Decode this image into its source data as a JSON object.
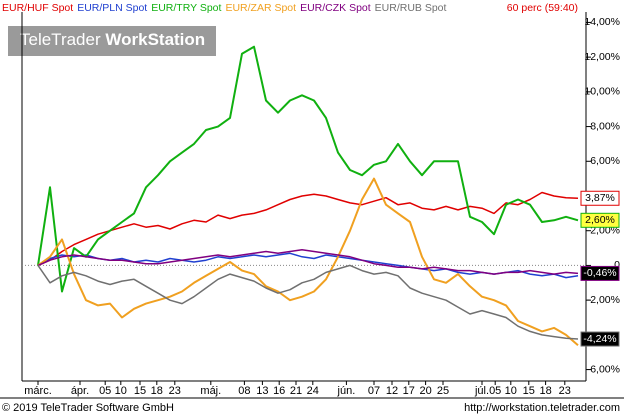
{
  "chart_data": {
    "type": "line",
    "period": "60 perc (59:40)",
    "watermark": {
      "brand": "TeleTrader",
      "product": "WorkStation"
    },
    "xlim": [
      0,
      45
    ],
    "xticks": [
      {
        "value": 0,
        "label": "márc."
      },
      {
        "value": 3.5,
        "label": "ápr."
      },
      {
        "value": 5.6,
        "label": "05"
      },
      {
        "value": 6.9,
        "label": "10"
      },
      {
        "value": 8.5,
        "label": "15"
      },
      {
        "value": 9.9,
        "label": "18"
      },
      {
        "value": 11.4,
        "label": "23"
      },
      {
        "value": 14.4,
        "label": "máj."
      },
      {
        "value": 17.2,
        "label": "08"
      },
      {
        "value": 18.7,
        "label": "13"
      },
      {
        "value": 20.1,
        "label": "16"
      },
      {
        "value": 21.5,
        "label": "21"
      },
      {
        "value": 22.9,
        "label": "24"
      },
      {
        "value": 25.7,
        "label": "jún."
      },
      {
        "value": 28,
        "label": "07"
      },
      {
        "value": 29.5,
        "label": "12"
      },
      {
        "value": 30.9,
        "label": "17"
      },
      {
        "value": 32.3,
        "label": "20"
      },
      {
        "value": 33.75,
        "label": "25"
      },
      {
        "value": 37,
        "label": "júl."
      },
      {
        "value": 38.1,
        "label": "05"
      },
      {
        "value": 39.4,
        "label": "10"
      },
      {
        "value": 40.9,
        "label": "15"
      },
      {
        "value": 42.3,
        "label": "18"
      },
      {
        "value": 43.9,
        "label": "23"
      }
    ],
    "ylim": [
      -6.6,
      14.6
    ],
    "yticks": [
      {
        "value": -6,
        "label": "-6,00%"
      },
      {
        "value": -2,
        "label": "-2,00%"
      },
      0,
      {
        "value": 2,
        "label": "2,00%"
      },
      {
        "value": 6,
        "label": "6,00%"
      },
      {
        "value": 8,
        "label": "8,00%"
      },
      {
        "value": 10,
        "label": "10,00%"
      },
      {
        "value": 12,
        "label": "12,00%"
      },
      {
        "value": 14,
        "label": "14,00%"
      }
    ],
    "series": [
      {
        "name": "EUR/HUF Spot",
        "color": "#e00000",
        "last_label": "3,87%",
        "values": [
          0,
          0.3,
          0.8,
          1.2,
          1.5,
          1.8,
          2,
          2.2,
          2.4,
          2.2,
          2.3,
          2.1,
          2.4,
          2.6,
          2.5,
          2.9,
          2.7,
          2.9,
          3.0,
          3.2,
          3.5,
          3.8,
          4.0,
          4.1,
          4.0,
          3.8,
          3.6,
          3.5,
          3.7,
          3.9,
          3.5,
          3.6,
          3.3,
          3.2,
          3.4,
          3.2,
          3.4,
          3.3,
          3.0,
          3.6,
          3.5,
          3.8,
          4.2,
          4.0,
          3.9,
          3.87
        ]
      },
      {
        "name": "EUR/PLN Spot",
        "color": "#2040d0",
        "values": [
          0,
          0.4,
          0.6,
          0.5,
          0.6,
          0.4,
          0.3,
          0.4,
          0.2,
          0.3,
          0.2,
          0.4,
          0.3,
          0.2,
          0.3,
          0.5,
          0.4,
          0.5,
          0.6,
          0.5,
          0.6,
          0.7,
          0.5,
          0.4,
          0.6,
          0.5,
          0.4,
          0.3,
          0.2,
          0.1,
          0.0,
          -0.1,
          -0.2,
          -0.3,
          -0.2,
          -0.4,
          -0.5,
          -0.4,
          -0.5,
          -0.4,
          -0.3,
          -0.5,
          -0.6,
          -0.5,
          -0.7,
          -0.6
        ]
      },
      {
        "name": "EUR/TRY Spot",
        "color": "#10b010",
        "last_label": "2,60%",
        "values": [
          0,
          4.5,
          -1.5,
          1,
          0.5,
          1.5,
          2,
          2.5,
          3,
          4.5,
          5.2,
          6,
          6.5,
          7,
          7.8,
          8,
          8.5,
          12.2,
          12.6,
          9.5,
          8.8,
          9.5,
          9.8,
          9.5,
          8.5,
          6.5,
          5.5,
          5.2,
          5.8,
          6,
          7,
          6,
          5.2,
          6,
          6,
          6,
          2.8,
          2.5,
          1.8,
          3.5,
          3.8,
          3.5,
          2.5,
          2.6,
          2.8,
          2.6
        ]
      },
      {
        "name": "EUR/ZAR Spot",
        "color": "#f0a020",
        "values": [
          0,
          0.5,
          1.5,
          -0.5,
          -2,
          -2.3,
          -2.2,
          -3,
          -2.5,
          -2.2,
          -2,
          -1.8,
          -1.5,
          -1,
          -0.6,
          -0.2,
          0.2,
          -0.3,
          -0.5,
          -1.2,
          -1.5,
          -2,
          -1.8,
          -1.5,
          -0.8,
          0.5,
          2,
          3.8,
          5,
          3.5,
          3,
          2.5,
          0.5,
          -0.8,
          -1,
          -0.5,
          -1.2,
          -1.8,
          -2,
          -2.3,
          -3.2,
          -3.5,
          -3.8,
          -3.6,
          -4,
          -4.6
        ]
      },
      {
        "name": "EUR/CZK Spot",
        "color": "#800080",
        "last_label": "-0,46%",
        "values": [
          0,
          0.3,
          0.5,
          0.6,
          0.5,
          0.4,
          0.3,
          0.3,
          0.2,
          0.1,
          0.1,
          0.2,
          0.3,
          0.4,
          0.5,
          0.6,
          0.5,
          0.6,
          0.7,
          0.8,
          0.7,
          0.8,
          0.9,
          0.8,
          0.7,
          0.6,
          0.5,
          0.3,
          0.1,
          0.0,
          -0.1,
          -0.1,
          -0.2,
          -0.1,
          -0.2,
          -0.3,
          -0.3,
          -0.4,
          -0.5,
          -0.4,
          -0.4,
          -0.3,
          -0.4,
          -0.5,
          -0.4,
          -0.46
        ]
      },
      {
        "name": "EUR/RUB Spot",
        "color": "#707070",
        "last_label": "-4,24%",
        "values": [
          0,
          -1,
          -0.6,
          -0.4,
          -0.6,
          -0.9,
          -1.1,
          -0.9,
          -0.8,
          -1.2,
          -1.6,
          -2,
          -2.2,
          -1.8,
          -1.3,
          -0.8,
          -0.5,
          -0.7,
          -0.9,
          -1.3,
          -1.6,
          -1.4,
          -1,
          -0.8,
          -0.4,
          -0.2,
          0,
          -0.3,
          -0.5,
          -0.4,
          -0.6,
          -1.3,
          -1.6,
          -1.8,
          -2,
          -2.4,
          -2.8,
          -2.6,
          -2.8,
          -3,
          -3.5,
          -3.8,
          -4,
          -4.1,
          -4.2,
          -4.24
        ]
      }
    ]
  },
  "footer": {
    "copyright": "© 2019 TeleTrader Software GmbH",
    "url": "http://workstation.teletrader.com"
  }
}
